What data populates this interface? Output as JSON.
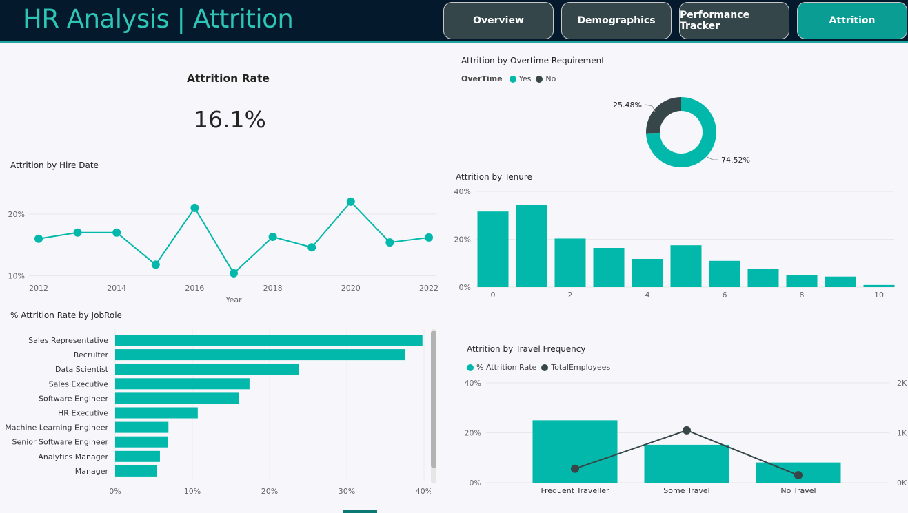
{
  "header": {
    "title": "HR Analysis | Attrition",
    "nav": [
      {
        "label": "Overview",
        "active": false
      },
      {
        "label": "Demographics",
        "active": false
      },
      {
        "label": "Performance Tracker",
        "active": false
      },
      {
        "label": "Attrition",
        "active": true
      }
    ]
  },
  "colors": {
    "teal": "#01b8aa",
    "dark": "#374649",
    "header_bg": "#04192c",
    "title": "#2ec4b6"
  },
  "kpi": {
    "title": "Attrition Rate",
    "value": "16.1%"
  },
  "chart_data": [
    {
      "type": "line",
      "title": "Attrition by Hire Date",
      "xlabel": "Year",
      "ylabel": "",
      "x": [
        2012,
        2013,
        2014,
        2015,
        2016,
        2017,
        2018,
        2019,
        2020,
        2021,
        2022
      ],
      "values": [
        16.0,
        17.0,
        17.0,
        11.8,
        21.0,
        10.4,
        16.3,
        14.6,
        22.0,
        15.4,
        16.2
      ],
      "xticks": [
        "2012",
        "2014",
        "2016",
        "2018",
        "2020",
        "2022"
      ],
      "yticks": [
        "10%",
        "20%"
      ],
      "ylim": [
        9.5,
        24
      ]
    },
    {
      "type": "bar",
      "orientation": "horizontal",
      "title": "% Attrition Rate by JobRole",
      "categories": [
        "Sales Representative",
        "Recruiter",
        "Data Scientist",
        "Sales Executive",
        "Software Engineer",
        "HR Executive",
        "Machine Learning Engineer",
        "Senior Software Engineer",
        "Analytics Manager",
        "Manager"
      ],
      "values": [
        39.8,
        37.5,
        23.8,
        17.4,
        16.0,
        10.7,
        6.9,
        6.8,
        5.8,
        5.4
      ],
      "xticks": [
        "0%",
        "10%",
        "20%",
        "30%",
        "40%"
      ],
      "xlim": [
        0,
        40
      ]
    },
    {
      "type": "pie",
      "title": "Attrition by Overtime Requirement",
      "legend_title": "OverTime",
      "categories": [
        "Yes",
        "No"
      ],
      "values": [
        74.52,
        25.48
      ],
      "labels": [
        "74.52%",
        "25.48%"
      ]
    },
    {
      "type": "bar",
      "title": "Attrition by Tenure",
      "categories": [
        0,
        1,
        2,
        3,
        4,
        5,
        6,
        7,
        8,
        9,
        10
      ],
      "values": [
        31.6,
        34.5,
        20.3,
        16.4,
        11.8,
        17.5,
        11.0,
        7.6,
        5.1,
        4.4,
        0.9
      ],
      "xticks": [
        "0",
        "2",
        "4",
        "6",
        "8",
        "10"
      ],
      "yticks": [
        "0%",
        "20%",
        "40%"
      ],
      "ylim": [
        0,
        40
      ]
    },
    {
      "type": "bar",
      "title": "Attrition by Travel Frequency",
      "categories": [
        "Frequent Traveller",
        "Some Travel",
        "No Travel"
      ],
      "series": [
        {
          "name": "% Attrition Rate",
          "type": "bar",
          "axis": "left",
          "values": [
            25.0,
            15.2,
            8.1
          ]
        },
        {
          "name": "TotalEmployees",
          "type": "line",
          "axis": "right",
          "values": [
            280,
            1050,
            150
          ]
        }
      ],
      "yticks": [
        "0%",
        "20%",
        "40%"
      ],
      "y2ticks": [
        "0K",
        "1K",
        "2K"
      ],
      "ylim": [
        0,
        40
      ],
      "y2lim": [
        0,
        2000
      ]
    }
  ]
}
